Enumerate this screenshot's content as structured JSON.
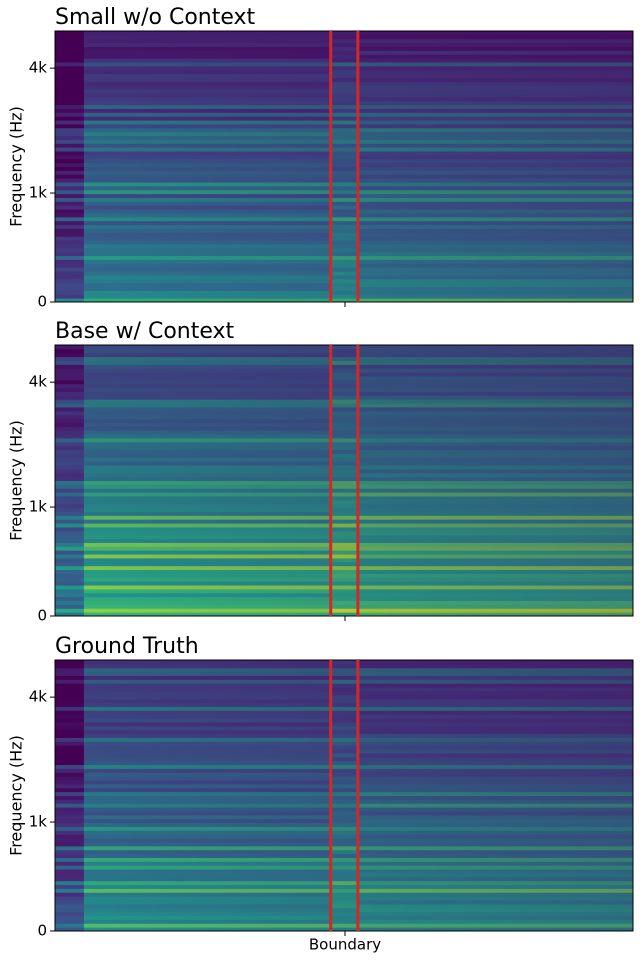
{
  "chart_data": [
    {
      "type": "spectrogram",
      "title": "Small w/o Context",
      "ylabel": "Frequency (Hz)",
      "yscale": "mel",
      "ylim": [
        0,
        5660
      ],
      "yticks": [
        {
          "value": 0,
          "label": "0"
        },
        {
          "value": 1000,
          "label": "1k"
        },
        {
          "value": 4000,
          "label": "4k"
        }
      ],
      "categories": [
        null
      ],
      "boundary_color": "#d62728"
    },
    {
      "type": "spectrogram",
      "title": "Base w/ Context",
      "ylabel": "Frequency (Hz)",
      "yscale": "mel",
      "ylim": [
        0,
        5660
      ],
      "yticks": [
        {
          "value": 0,
          "label": "0"
        },
        {
          "value": 1000,
          "label": "1k"
        },
        {
          "value": 4000,
          "label": "4k"
        }
      ],
      "categories": [
        null
      ],
      "boundary_color": "#d62728"
    },
    {
      "type": "spectrogram",
      "title": "Ground Truth",
      "ylabel": "Frequency (Hz)",
      "yscale": "mel",
      "ylim": [
        0,
        5660
      ],
      "yticks": [
        {
          "value": 0,
          "label": "0"
        },
        {
          "value": 1000,
          "label": "1k"
        },
        {
          "value": 4000,
          "label": "4k"
        }
      ],
      "categories": [
        "Boundary"
      ],
      "boundary_color": "#d62728"
    }
  ]
}
